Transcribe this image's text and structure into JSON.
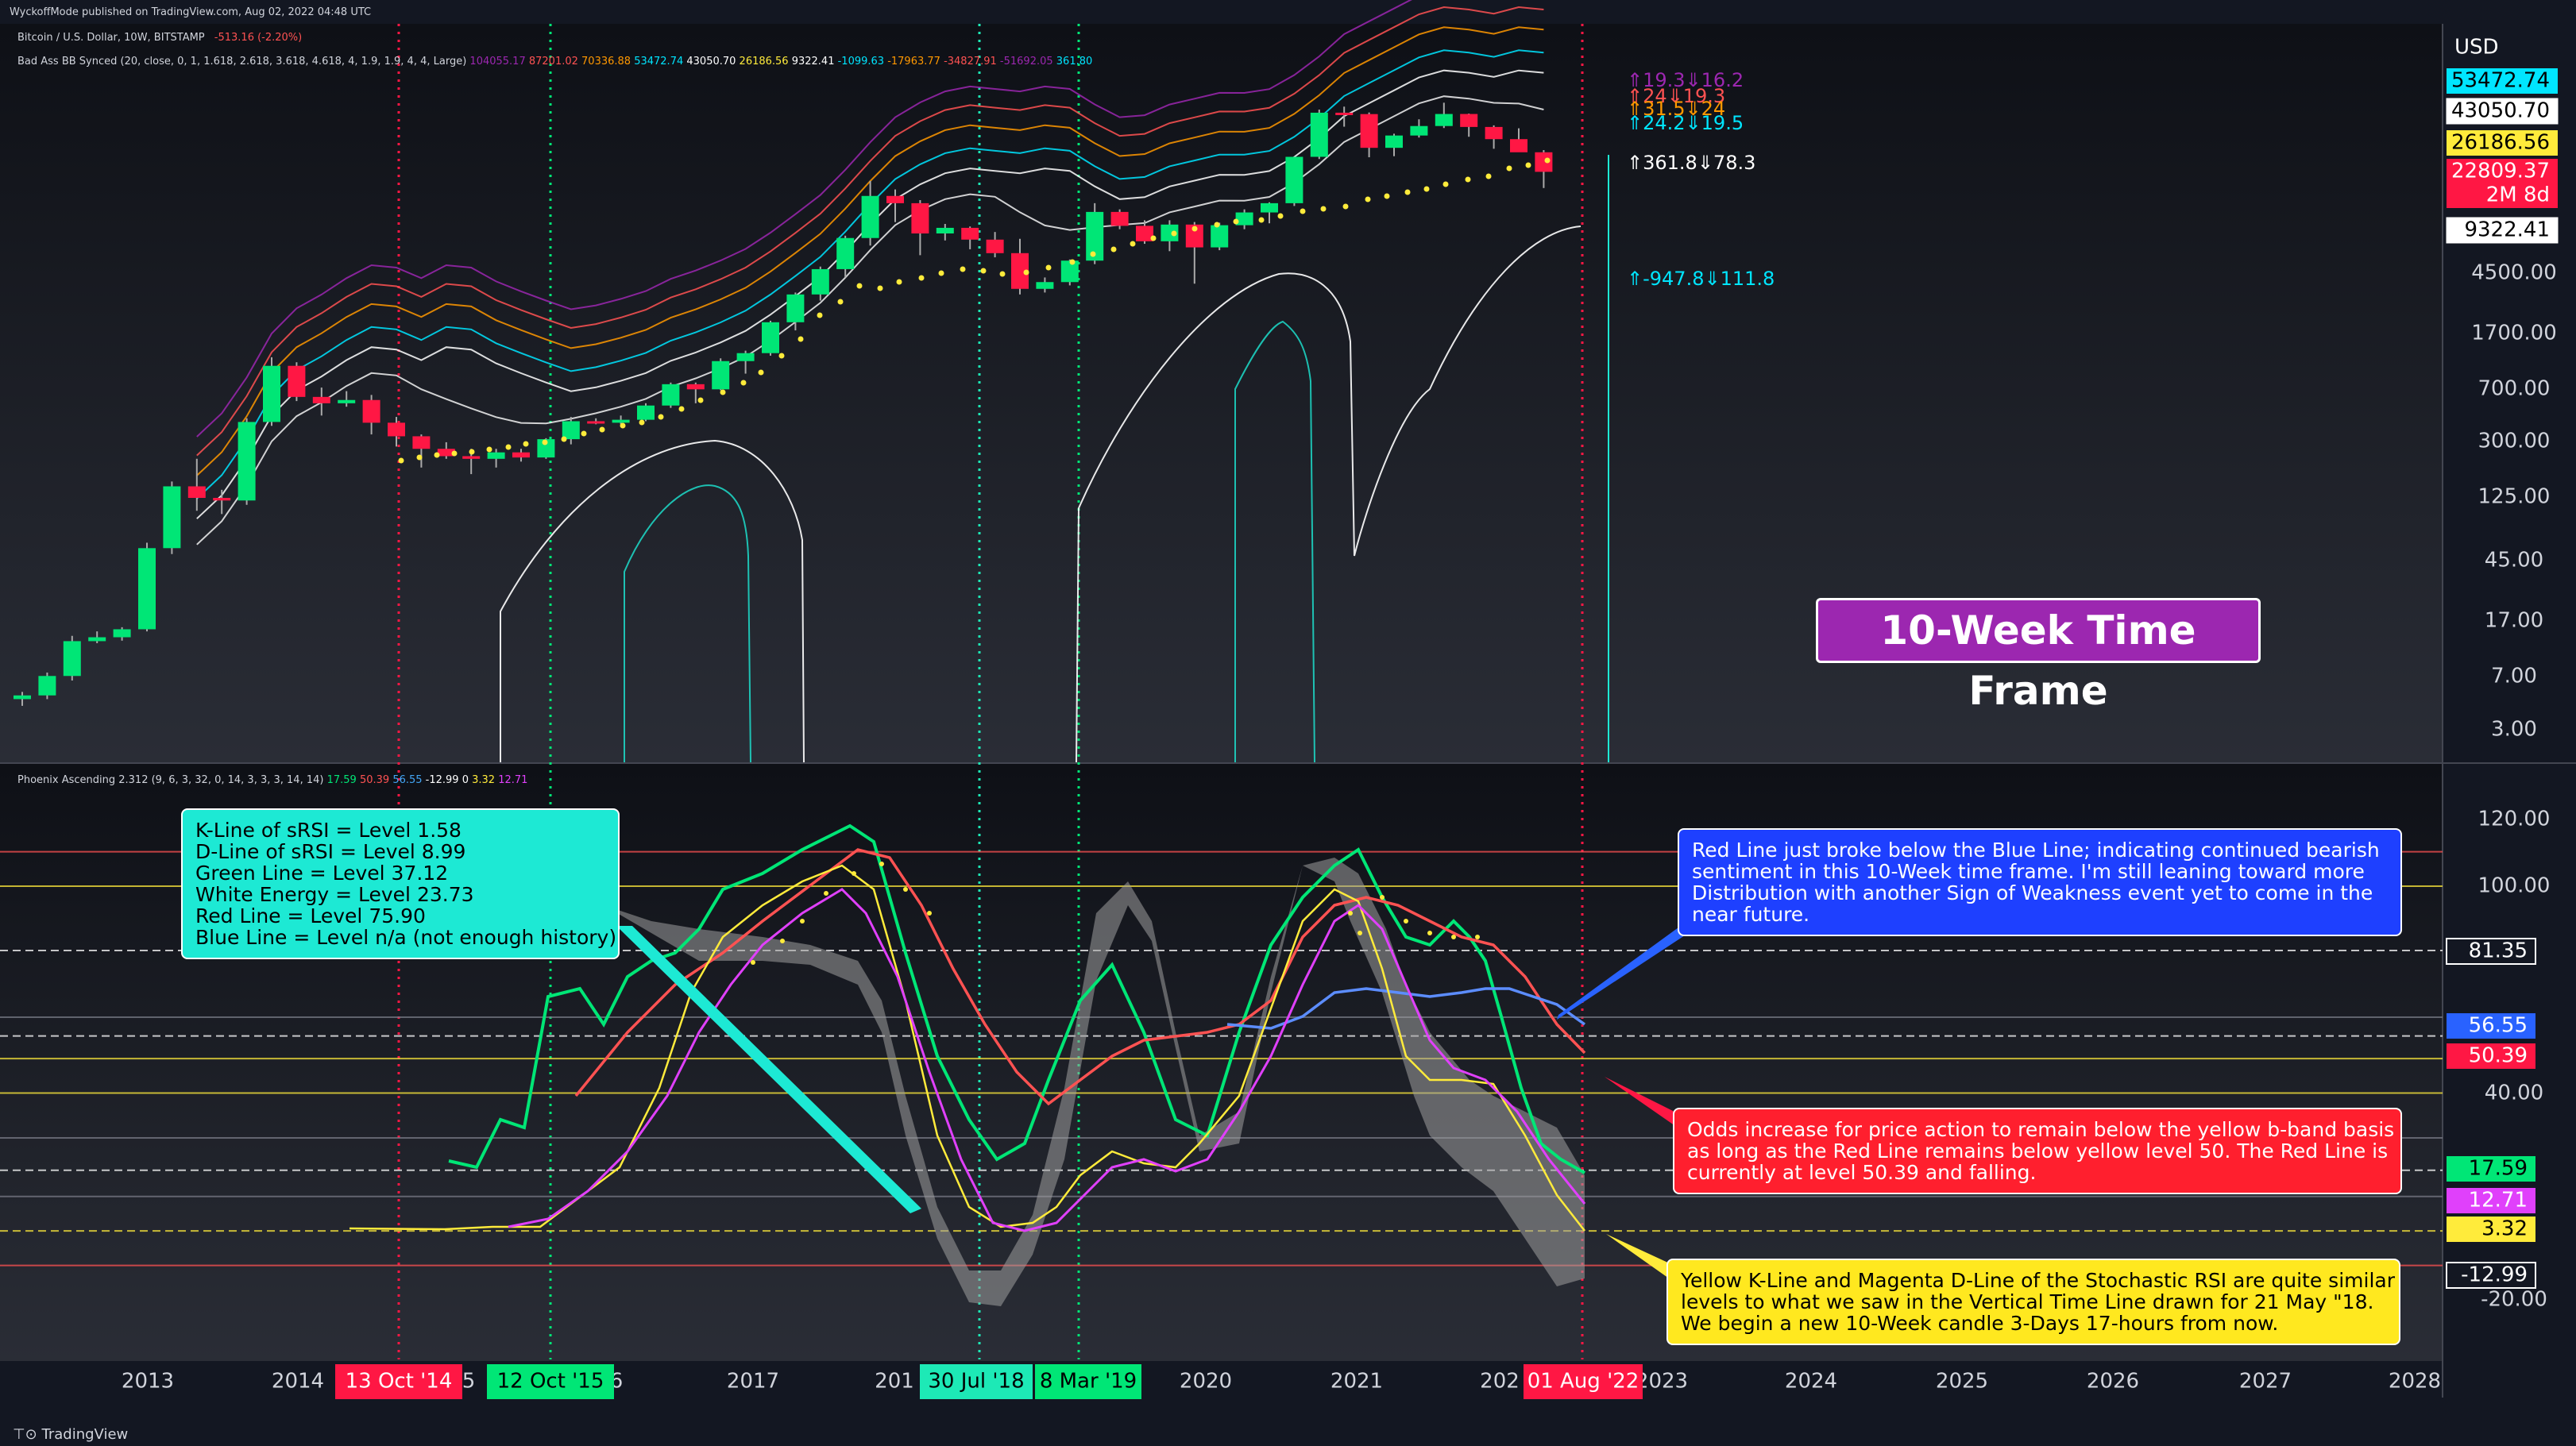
{
  "header": {
    "published": "WyckoffMode published on TradingView.com, Aug 02, 2022 04:48 UTC",
    "symbol_line": "Bitcoin / U.S. Dollar, 10W, BITSTAMP",
    "symbol_change": "-513.16 (-2.20%)",
    "bb_indicator": "Bad Ass BB Synced (20, close, 0, 1, 1.618, 2.618, 3.618, 4.618, 4, 1.9, 1.9, 4, 4, Large)",
    "bb_values": [
      {
        "text": "104055.17",
        "color": "#9c27b0"
      },
      {
        "text": "87201.02",
        "color": "#ff5252"
      },
      {
        "text": "70336.88",
        "color": "#ff9800"
      },
      {
        "text": "53472.74",
        "color": "#00e5ff"
      },
      {
        "text": "43050.70",
        "color": "#ffffff"
      },
      {
        "text": "26186.56",
        "color": "#ffeb3b"
      },
      {
        "text": "9322.41",
        "color": "#ffffff"
      },
      {
        "text": "-1099.63",
        "color": "#00e5ff"
      },
      {
        "text": "-17963.77",
        "color": "#ff9800"
      },
      {
        "text": "-34827.91",
        "color": "#ff5252"
      },
      {
        "text": "-51692.05",
        "color": "#9c27b0"
      },
      {
        "text": "361.80",
        "color": "#00e5ff"
      }
    ],
    "phoenix_indicator": "Phoenix Ascending 2.312 (9, 6, 3, 32, 0, 14, 3, 3, 3, 14, 14)",
    "phoenix_values": [
      {
        "text": "17.59",
        "color": "#00e676"
      },
      {
        "text": "50.39",
        "color": "#ff5252"
      },
      {
        "text": "56.55",
        "color": "#42a5f5"
      },
      {
        "text": "-12.99",
        "color": "#ffffff"
      },
      {
        "text": "0",
        "color": "#ffffff"
      },
      {
        "text": "3.32",
        "color": "#ffeb3b"
      },
      {
        "text": "12.71",
        "color": "#e040fb"
      }
    ]
  },
  "colors": {
    "background": "#131722",
    "bull_candle": "#00e676",
    "bear_candle": "#ff1744",
    "currency": "#ffffff"
  },
  "price_axis": {
    "currency": "USD",
    "ticks": [
      "4500.00",
      "1700.00",
      "700.00",
      "300.00",
      "125.00",
      "45.00",
      "17.00",
      "7.00",
      "3.00"
    ],
    "badges": [
      {
        "text": "53472.74",
        "bg": "#00e5ff",
        "fg": "#000000"
      },
      {
        "text": "43050.70",
        "bg": "#ffffff",
        "fg": "#000000"
      },
      {
        "text": "26186.56",
        "bg": "#ffeb3b",
        "fg": "#000000"
      },
      {
        "text": "22809.37",
        "bg": "#ff1744",
        "fg": "#ffffff"
      },
      {
        "text": "2M 8d",
        "bg": "#ff1744",
        "fg": "#ffffff"
      },
      {
        "text": "9322.41",
        "bg": "#ffffff",
        "fg": "#000000"
      }
    ]
  },
  "osc_axis": {
    "ticks": [
      "120.00",
      "100.00",
      "40.00",
      "-20.00"
    ],
    "badges": [
      {
        "text": "81.35",
        "bg": "#131722",
        "fg": "#ffffff",
        "border": "#ffffff"
      },
      {
        "text": "56.55",
        "bg": "#2962ff",
        "fg": "#ffffff"
      },
      {
        "text": "50.39",
        "bg": "#ff1744",
        "fg": "#ffffff"
      },
      {
        "text": "17.59",
        "bg": "#00e676",
        "fg": "#000000"
      },
      {
        "text": "12.71",
        "bg": "#e040fb",
        "fg": "#ffffff"
      },
      {
        "text": "3.32",
        "bg": "#ffeb3b",
        "fg": "#000000"
      },
      {
        "text": "-12.99",
        "bg": "#131722",
        "fg": "#ffffff",
        "border": "#ffffff"
      }
    ]
  },
  "price_labels": [
    {
      "text": "⇑19.3⇓16.2",
      "color": "#9c27b0"
    },
    {
      "text": "⇑24⇓19.3",
      "color": "#ff5252"
    },
    {
      "text": "⇑31.5⇓24",
      "color": "#ff9800"
    },
    {
      "text": "⇑24.2⇓19.5",
      "color": "#00e5ff"
    },
    {
      "text": "⇑361.8⇓78.3",
      "color": "#ffffff"
    },
    {
      "text": "⇑-947.8⇓111.8",
      "color": "#00e5ff"
    }
  ],
  "time_axis": {
    "labels": [
      "2013",
      "2014",
      "2017",
      "2020",
      "2021",
      "2023",
      "2024",
      "2025",
      "2026",
      "2027",
      "2028"
    ],
    "partial": [
      "5",
      "6",
      "201",
      "202"
    ],
    "vlines": [
      {
        "label": "13 Oct '14",
        "color": "#ff1744",
        "fg": "#ffffff"
      },
      {
        "label": "12 Oct '15",
        "color": "#00e676",
        "fg": "#000000"
      },
      {
        "label": "30 Jul '18",
        "color": "#1de9b6",
        "fg": "#000000"
      },
      {
        "label": "8 Mar '19",
        "color": "#00e676",
        "fg": "#000000"
      },
      {
        "label": "01 Aug '22",
        "color": "#ff1744",
        "fg": "#ffffff"
      }
    ]
  },
  "chart_data": {
    "type": "candlestick",
    "title": "Bitcoin / U.S. Dollar, 10W, BITSTAMP",
    "timeframe": "10W",
    "scale": "log",
    "last_price": 22809.37,
    "candles_ohlc": [
      [
        4.9,
        5.5,
        4.4,
        5.2
      ],
      [
        5.2,
        7.5,
        4.9,
        7.1
      ],
      [
        7.1,
        13.5,
        6.6,
        12.4
      ],
      [
        12.4,
        14.5,
        12.0,
        13.2
      ],
      [
        13.2,
        15.5,
        12.5,
        15.0
      ],
      [
        15.0,
        60,
        14.5,
        55
      ],
      [
        55,
        160,
        50,
        148
      ],
      [
        148,
        230,
        100,
        123
      ],
      [
        123,
        140,
        95,
        118
      ],
      [
        118,
        440,
        110,
        415
      ],
      [
        415,
        1170,
        390,
        1020
      ],
      [
        1020,
        1080,
        580,
        620
      ],
      [
        620,
        720,
        460,
        560
      ],
      [
        560,
        680,
        530,
        590
      ],
      [
        590,
        640,
        340,
        410
      ],
      [
        410,
        450,
        280,
        330
      ],
      [
        330,
        340,
        200,
        270
      ],
      [
        270,
        300,
        230,
        240
      ],
      [
        240,
        270,
        180,
        230
      ],
      [
        230,
        270,
        200,
        255
      ],
      [
        255,
        270,
        220,
        235
      ],
      [
        235,
        320,
        230,
        315
      ],
      [
        315,
        450,
        290,
        420
      ],
      [
        420,
        440,
        400,
        410
      ],
      [
        410,
        460,
        400,
        430
      ],
      [
        430,
        560,
        420,
        540
      ],
      [
        540,
        780,
        520,
        760
      ],
      [
        760,
        780,
        560,
        700
      ],
      [
        700,
        1150,
        690,
        1100
      ],
      [
        1100,
        1300,
        900,
        1250
      ],
      [
        1250,
        2100,
        1200,
        2050
      ],
      [
        2050,
        3300,
        1800,
        3200
      ],
      [
        3200,
        5000,
        2900,
        4800
      ],
      [
        4800,
        8200,
        4200,
        7900
      ],
      [
        7900,
        19700,
        7000,
        15500
      ],
      [
        15500,
        17200,
        10200,
        13800
      ],
      [
        13800,
        14500,
        6000,
        8500
      ],
      [
        8500,
        9900,
        7600,
        9300
      ],
      [
        9300,
        9500,
        6600,
        7700
      ],
      [
        7700,
        8700,
        5800,
        6200
      ],
      [
        6200,
        7800,
        3200,
        3500
      ],
      [
        3500,
        4200,
        3300,
        3900
      ],
      [
        3900,
        5600,
        3700,
        5500
      ],
      [
        5500,
        13800,
        5200,
        12000
      ],
      [
        12000,
        12500,
        9100,
        9600
      ],
      [
        9600,
        10500,
        7200,
        7500
      ],
      [
        7500,
        10500,
        6400,
        9800
      ],
      [
        9800,
        10200,
        3800,
        6800
      ],
      [
        6800,
        10100,
        6500,
        9700
      ],
      [
        9700,
        12500,
        9100,
        11900
      ],
      [
        11900,
        14000,
        10000,
        13800
      ],
      [
        13800,
        29000,
        13200,
        29000
      ],
      [
        29000,
        61800,
        28000,
        58800
      ],
      [
        58800,
        64800,
        47000,
        57500
      ],
      [
        57500,
        59000,
        28800,
        33500
      ],
      [
        33500,
        42000,
        29300,
        40800
      ],
      [
        40800,
        52900,
        39500,
        47500
      ],
      [
        47500,
        69000,
        46000,
        57600
      ],
      [
        57600,
        58000,
        40000,
        46800
      ],
      [
        46800,
        48000,
        33000,
        38500
      ],
      [
        38500,
        45800,
        37500,
        31200
      ],
      [
        31200,
        32300,
        17600,
        22809.37
      ]
    ],
    "bands": [
      {
        "name": "104055.17",
        "color": "#9c27b0"
      },
      {
        "name": "87201.02",
        "color": "#ff5252"
      },
      {
        "name": "70336.88",
        "color": "#ff9800"
      },
      {
        "name": "53472.74",
        "color": "#00e5ff"
      },
      {
        "name": "43050.70",
        "color": "#ffffff"
      },
      {
        "name": "9322.41",
        "color": "#ffffff"
      }
    ],
    "oscillator": {
      "name": "Phoenix Ascending 2.312",
      "ylim": [
        -35,
        135
      ],
      "levels": [
        {
          "value": 110,
          "color": "#ff5252"
        },
        {
          "value": 100,
          "color": "#ffeb3b"
        },
        {
          "value": 81.35,
          "color": "#ffffff",
          "dashed": true
        },
        {
          "value": 62,
          "color": "#787b86"
        },
        {
          "value": 56.55,
          "color": "#ffffff",
          "dashed": true
        },
        {
          "value": 50,
          "color": "#ffeb3b"
        },
        {
          "value": 40,
          "color": "#ffeb3b"
        },
        {
          "value": 27,
          "color": "#787b86"
        },
        {
          "value": 17.59,
          "color": "#ffffff",
          "dashed": true
        },
        {
          "value": 10,
          "color": "#787b86"
        },
        {
          "value": 0,
          "color": "#ffeb3b",
          "dashed": true
        },
        {
          "value": -10,
          "color": "#ff5252"
        }
      ],
      "green_line": [
        null,
        null,
        null,
        null,
        null,
        null,
        null,
        null,
        null,
        null,
        null,
        null,
        null,
        null,
        null,
        null,
        null,
        null,
        null,
        null,
        null,
        null,
        null,
        null,
        null,
        null,
        null,
        null,
        null,
        null,
        null,
        null,
        null,
        null,
        null,
        null,
        null,
        null,
        null,
        null,
        null,
        null,
        null,
        null,
        null,
        null,
        null,
        null,
        null,
        null,
        null,
        null,
        null,
        null,
        null,
        null,
        null,
        null,
        null,
        null,
        null,
        null
      ],
      "red_line_last": 50.39,
      "blue_line_last": 56.55,
      "k_line_last": 3.32,
      "d_line_last": 12.71,
      "green_last": 17.59
    }
  },
  "annotations": {
    "timeframe_label": "10-Week Time Frame",
    "note_cyan": [
      "K-Line of sRSI = Level 1.58",
      "D-Line of sRSI = Level 8.99",
      "Green Line = Level 37.12",
      "White Energy = Level 23.73",
      "Red Line = Level 75.90",
      "Blue Line = Level n/a (not enough history)"
    ],
    "note_blue": [
      "Red Line just broke below the Blue Line; indicating continued bearish",
      "sentiment in this 10-Week time frame.  I'm still leaning toward more",
      "Distribution with another Sign of Weakness event yet to come in the",
      "near future."
    ],
    "note_red": [
      "Odds increase for price action to remain below the yellow b-band basis",
      "as long as the Red Line remains below yellow level 50. The Red Line is",
      "currently at level 50.39 and falling."
    ],
    "note_yellow": [
      "Yellow K-Line and Magenta D-Line of the Stochastic RSI are quite similar",
      "levels to what we saw in the Vertical Time Line drawn for 21 May \"18.",
      "We begin a new 10-Week candle 3-Days 17-hours from now."
    ]
  },
  "footer": {
    "brand": "TradingView"
  }
}
